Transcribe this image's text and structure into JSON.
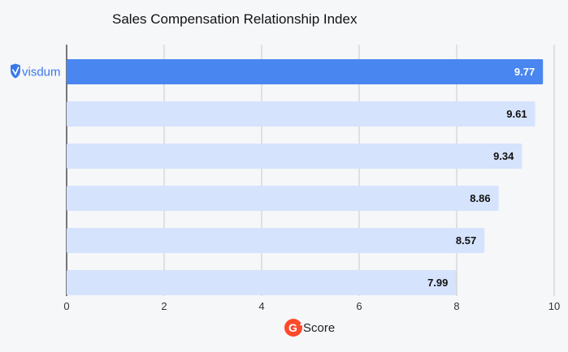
{
  "chart_data": {
    "type": "bar",
    "orientation": "horizontal",
    "title": "Sales Compensation Relationship Index",
    "categories": [
      "visdum",
      "",
      "",
      "",
      "",
      ""
    ],
    "values": [
      9.77,
      9.61,
      9.34,
      8.86,
      8.57,
      7.99
    ],
    "xlim": [
      0,
      10
    ],
    "xticks": [
      0,
      2,
      4,
      6,
      8,
      10
    ],
    "xlabel": "Score",
    "grid": "vertical",
    "highlight_index": 0,
    "colors": {
      "highlight": "#4a86f0",
      "bar": "#d6e3fd",
      "grid": "#c8c8c8",
      "label_on_highlight": "#ffffff",
      "label": "#111111",
      "brand": "#3a78e8",
      "g2": "#ff492c"
    }
  },
  "brand": {
    "name": "visdum",
    "icon": "shield-logo-icon"
  },
  "axis_badge": {
    "icon": "g2-logo-icon",
    "text": "Score"
  }
}
